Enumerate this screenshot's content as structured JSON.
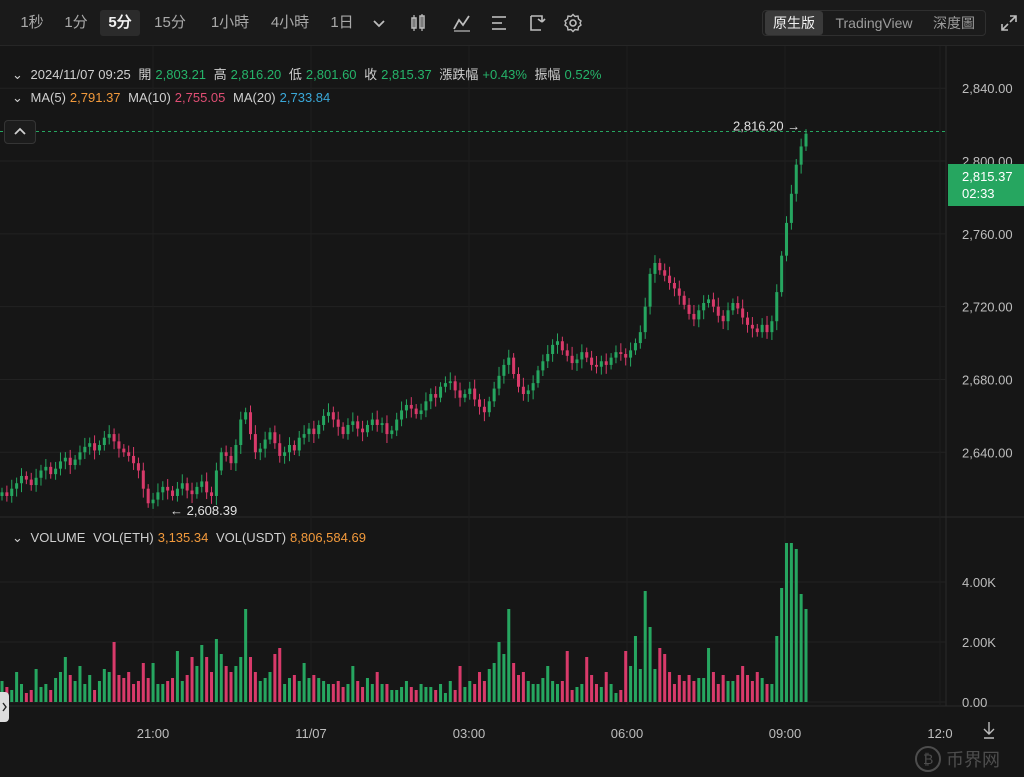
{
  "toolbar": {
    "intervals": [
      {
        "label": "1秒",
        "active": false
      },
      {
        "label": "1分",
        "active": false
      },
      {
        "label": "5分",
        "active": true
      },
      {
        "label": "15分",
        "active": false
      },
      {
        "label": "1小時",
        "active": false
      },
      {
        "label": "4小時",
        "active": false
      },
      {
        "label": "1日",
        "active": false
      }
    ],
    "views": [
      {
        "label": "原生版",
        "active": true
      },
      {
        "label": "TradingView",
        "active": false
      },
      {
        "label": "深度圖",
        "active": false
      }
    ]
  },
  "info": {
    "datetime": "2024/11/07 09:25",
    "open_label": "開",
    "open": "2,803.21",
    "high_label": "高",
    "high": "2,816.20",
    "low_label": "低",
    "low": "2,801.60",
    "close_label": "收",
    "close": "2,815.37",
    "change_label": "漲跌幅",
    "change": "+0.43%",
    "amp_label": "振幅",
    "amp": "0.52%"
  },
  "ma": {
    "ma5_label": "MA(5)",
    "ma5": "2,791.37",
    "ma10_label": "MA(10)",
    "ma10": "2,755.05",
    "ma20_label": "MA(20)",
    "ma20": "2,733.84"
  },
  "volume_info": {
    "label": "VOLUME",
    "eth_label": "VOL(ETH)",
    "eth": "3,135.34",
    "usdt_label": "VOL(USDT)",
    "usdt": "8,806,584.69"
  },
  "price_axis": {
    "ticks": [
      "2,840.00",
      "2,800.00",
      "2,760.00",
      "2,720.00",
      "2,680.00",
      "2,640.00"
    ],
    "tick_values": [
      2840,
      2800,
      2760,
      2720,
      2680,
      2640
    ]
  },
  "volume_axis": {
    "ticks": [
      "4.00K",
      "2.00K",
      "0.00"
    ],
    "tick_values": [
      4000,
      2000,
      0
    ]
  },
  "time_axis": {
    "ticks": [
      "21:00",
      "11/07",
      "03:00",
      "06:00",
      "09:00",
      "12:0"
    ]
  },
  "last_price": {
    "value": "2,815.37",
    "countdown": "02:33"
  },
  "high_marker": "2,816.20",
  "low_marker": "2,608.39",
  "colors": {
    "up": "#26a660",
    "down": "#d83a6a",
    "bg": "#161616"
  },
  "chart_data": {
    "type": "candlestick",
    "ylim": [
      2605,
      2850
    ],
    "volume_ylim": [
      0,
      5400
    ],
    "series_desc": "5-minute ETH/USDT candles (approximate), from ~19:00 to 09:25",
    "closes": [
      2618,
      2616,
      2620,
      2623,
      2627,
      2625,
      2622,
      2626,
      2630,
      2632,
      2628,
      2631,
      2635,
      2637,
      2633,
      2636,
      2640,
      2643,
      2645,
      2641,
      2644,
      2648,
      2650,
      2646,
      2642,
      2640,
      2638,
      2634,
      2630,
      2620,
      2612,
      2614,
      2618,
      2621,
      2619,
      2616,
      2620,
      2623,
      2619,
      2617,
      2621,
      2624,
      2618,
      2616,
      2630,
      2640,
      2638,
      2634,
      2644,
      2658,
      2662,
      2650,
      2640,
      2642,
      2647,
      2651,
      2645,
      2638,
      2640,
      2644,
      2641,
      2648,
      2650,
      2653,
      2650,
      2655,
      2660,
      2662,
      2658,
      2654,
      2650,
      2655,
      2657,
      2653,
      2651,
      2655,
      2658,
      2655,
      2656,
      2650,
      2652,
      2658,
      2663,
      2666,
      2664,
      2661,
      2663,
      2668,
      2672,
      2670,
      2676,
      2678,
      2679,
      2674,
      2670,
      2672,
      2675,
      2669,
      2665,
      2662,
      2668,
      2675,
      2682,
      2688,
      2692,
      2683,
      2676,
      2672,
      2674,
      2678,
      2685,
      2690,
      2694,
      2699,
      2701,
      2696,
      2693,
      2689,
      2691,
      2695,
      2692,
      2688,
      2687,
      2690,
      2688,
      2692,
      2695,
      2694,
      2692,
      2696,
      2700,
      2706,
      2720,
      2738,
      2744,
      2740,
      2737,
      2733,
      2730,
      2726,
      2721,
      2716,
      2713,
      2718,
      2722,
      2724,
      2720,
      2715,
      2712,
      2718,
      2722,
      2719,
      2714,
      2710,
      2708,
      2706,
      2710,
      2706,
      2712,
      2728,
      2748,
      2766,
      2782,
      2798,
      2808,
      2815
    ],
    "volumes": [
      700,
      500,
      400,
      1000,
      600,
      300,
      400,
      1100,
      500,
      600,
      400,
      800,
      1000,
      1500,
      900,
      700,
      1200,
      600,
      900,
      400,
      700,
      1100,
      1000,
      2000,
      900,
      800,
      1000,
      600,
      700,
      1300,
      800,
      1300,
      600,
      600,
      700,
      800,
      1700,
      700,
      900,
      1500,
      1200,
      1900,
      1500,
      1000,
      2100,
      1600,
      1200,
      1000,
      1200,
      1500,
      3100,
      1500,
      1000,
      700,
      800,
      1000,
      1600,
      1800,
      600,
      800,
      900,
      700,
      1300,
      800,
      900,
      800,
      700,
      600,
      600,
      700,
      500,
      600,
      1200,
      700,
      500,
      800,
      600,
      1000,
      600,
      600,
      400,
      400,
      500,
      700,
      500,
      400,
      600,
      500,
      500,
      400,
      600,
      300,
      700,
      400,
      1200,
      500,
      700,
      600,
      1000,
      700,
      1100,
      1300,
      2000,
      1600,
      3100,
      1300,
      900,
      1000,
      700,
      600,
      600,
      800,
      1200,
      700,
      600,
      700,
      1700,
      400,
      500,
      600,
      1500,
      900,
      600,
      500,
      1000,
      600,
      300,
      400,
      1700,
      1200,
      2200,
      1100,
      3700,
      2500,
      1100,
      1800,
      1600,
      1000,
      600,
      900,
      700,
      900,
      700,
      800,
      800,
      1800,
      1000,
      600,
      900,
      700,
      700,
      900,
      1200,
      900,
      700,
      1000,
      800,
      600,
      600,
      2200,
      3800,
      5300,
      5300,
      5100,
      3600,
      3100
    ]
  }
}
